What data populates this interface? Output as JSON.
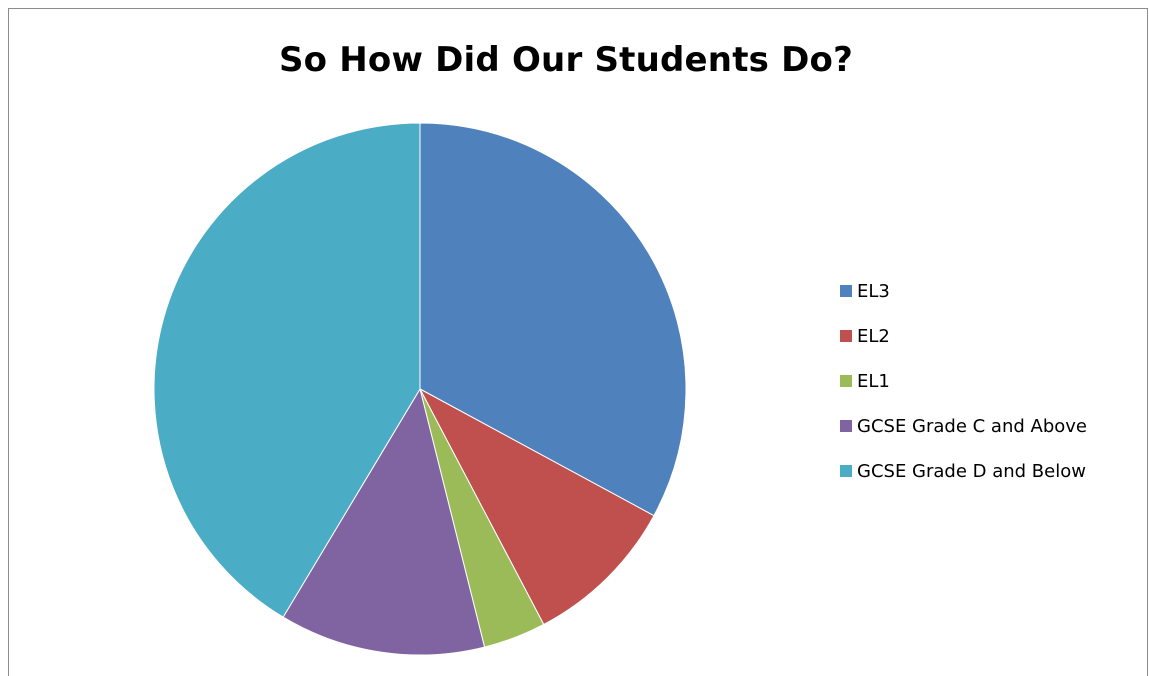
{
  "chart_data": {
    "type": "pie",
    "title": "So How Did Our Students Do?",
    "categories": [
      "EL3",
      "EL2",
      "EL1",
      "GCSE Grade C and Above",
      "GCSE Grade D and Below"
    ],
    "values": [
      32.9,
      9.4,
      3.8,
      12.5,
      41.4
    ],
    "unit": "%",
    "colors": [
      "#4F81BD",
      "#C0504D",
      "#9BBB59",
      "#8064A2",
      "#4BACC6"
    ],
    "start_angle": "12 o'clock",
    "direction": "clockwise",
    "legend_position": "right"
  }
}
